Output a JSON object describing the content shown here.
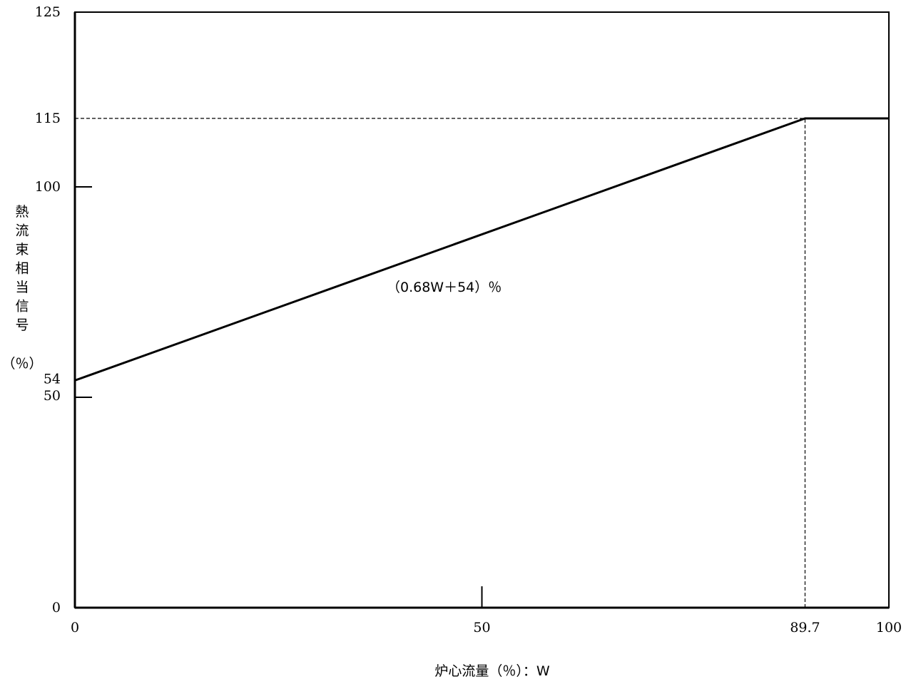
{
  "chart_data": {
    "type": "line",
    "xlabel": "炉心流量（％）：W",
    "ylabel": "熱流束相当信号",
    "ylabel_unit": "（％）",
    "xlim": [
      0,
      100
    ],
    "ylim": [
      0,
      125
    ],
    "x_ticks": [
      "0",
      "50",
      "89.7",
      "100"
    ],
    "y_ticks": [
      "0",
      "50",
      "54",
      "100",
      "115",
      "125"
    ],
    "series": [
      {
        "x": [
          0,
          89.7,
          100
        ],
        "y": [
          54,
          115,
          115
        ]
      }
    ],
    "reference_lines": [
      {
        "orientation": "horizontal",
        "value": 115,
        "style": "dashed",
        "from_x": 0,
        "to_x": 89.7
      },
      {
        "orientation": "vertical",
        "value": 89.7,
        "style": "dashed",
        "from_y": 0,
        "to_y": 115
      }
    ],
    "annotations": [
      {
        "text": "（0.68W＋54）％"
      }
    ],
    "grid": false,
    "colors": {
      "line": "#000000",
      "axes": "#000000"
    }
  }
}
